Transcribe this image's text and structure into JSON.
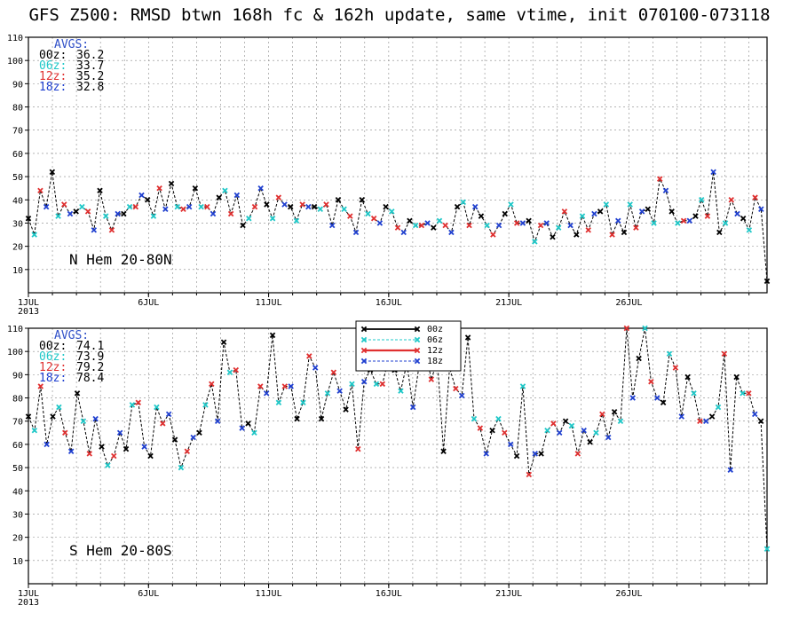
{
  "title": "GFS Z500: RMSD btwn 168h fc & 162h update, same vtime, init 070100-073118",
  "colors": {
    "00z": "#000000",
    "06z": "#1fc8c8",
    "12z": "#e03030",
    "18z": "#2040d0",
    "grid": "#888888"
  },
  "chart_data": [
    {
      "type": "line",
      "panel_label": "N Hem 20-80N",
      "ylim": [
        0,
        110
      ],
      "yticks": [
        10,
        20,
        30,
        40,
        50,
        60,
        70,
        80,
        90,
        100,
        110
      ],
      "xlim": [
        1,
        31.75
      ],
      "xticks": [
        {
          "x": 1,
          "label": "1JUL"
        },
        {
          "x": 6,
          "label": "6JUL"
        },
        {
          "x": 11,
          "label": "11JUL"
        },
        {
          "x": 16,
          "label": "16JUL"
        },
        {
          "x": 21,
          "label": "21JUL"
        },
        {
          "x": 26,
          "label": "26JUL"
        }
      ],
      "year_label": "2013",
      "avgs_title": "AVGS:",
      "avgs": [
        {
          "cycle": "00z",
          "label": "00z:",
          "value": "36.2"
        },
        {
          "cycle": "06z",
          "label": "06z:",
          "value": "33.7"
        },
        {
          "cycle": "12z",
          "label": "12z:",
          "value": "35.2"
        },
        {
          "cycle": "18z",
          "label": "18z:",
          "value": "32.8"
        }
      ],
      "values": [
        32,
        25,
        44,
        37,
        52,
        33,
        38,
        34,
        35,
        37,
        35,
        27,
        44,
        33,
        27,
        34,
        34,
        37,
        37,
        42,
        40,
        33,
        45,
        36,
        47,
        37,
        36,
        37,
        45,
        37,
        37,
        34,
        41,
        44,
        34,
        42,
        29,
        32,
        37,
        45,
        38,
        32,
        41,
        38,
        37,
        31,
        38,
        37,
        37,
        36,
        38,
        29,
        40,
        36,
        33,
        26,
        40,
        34,
        32,
        30,
        37,
        35,
        28,
        26,
        31,
        29,
        29,
        30,
        28,
        31,
        29,
        26,
        37,
        39,
        29,
        37,
        33,
        29,
        25,
        29,
        34,
        38,
        30,
        30,
        31,
        22,
        29,
        30,
        24,
        28,
        35,
        29,
        25,
        33,
        27,
        34,
        35,
        38,
        25,
        31,
        26,
        38,
        28,
        35,
        36,
        30,
        49,
        44,
        35,
        30,
        31,
        31,
        33,
        40,
        33,
        52,
        26,
        30,
        40,
        34,
        32,
        27,
        41,
        36,
        5
      ]
    },
    {
      "type": "line",
      "panel_label": "S Hem 20-80S",
      "ylim": [
        0,
        110
      ],
      "yticks": [
        10,
        20,
        30,
        40,
        50,
        60,
        70,
        80,
        90,
        100,
        110
      ],
      "xlim": [
        1,
        31.75
      ],
      "xticks": [
        {
          "x": 1,
          "label": "1JUL"
        },
        {
          "x": 6,
          "label": "6JUL"
        },
        {
          "x": 11,
          "label": "11JUL"
        },
        {
          "x": 16,
          "label": "16JUL"
        },
        {
          "x": 21,
          "label": "21JUL"
        },
        {
          "x": 26,
          "label": "26JUL"
        }
      ],
      "year_label": "2013",
      "avgs_title": "AVGS:",
      "avgs": [
        {
          "cycle": "00z",
          "label": "00z:",
          "value": "74.1"
        },
        {
          "cycle": "06z",
          "label": "06z:",
          "value": "73.9"
        },
        {
          "cycle": "12z",
          "label": "12z:",
          "value": "79.2"
        },
        {
          "cycle": "18z",
          "label": "18z:",
          "value": "78.4"
        }
      ],
      "legend": [
        "00z",
        "06z",
        "12z",
        "18z"
      ],
      "values": [
        72,
        66,
        85,
        60,
        72,
        76,
        65,
        57,
        82,
        70,
        56,
        71,
        59,
        51,
        55,
        65,
        58,
        77,
        78,
        59,
        55,
        76,
        69,
        73,
        62,
        50,
        57,
        63,
        65,
        77,
        86,
        70,
        104,
        91,
        92,
        67,
        69,
        65,
        85,
        82,
        107,
        78,
        85,
        85,
        71,
        78,
        98,
        93,
        71,
        82,
        91,
        83,
        75,
        86,
        58,
        87,
        92,
        86,
        86,
        97,
        92,
        83,
        95,
        76,
        94,
        101,
        88,
        96,
        57,
        93,
        84,
        81,
        106,
        71,
        67,
        56,
        66,
        71,
        65,
        60,
        55,
        85,
        47,
        56,
        56,
        66,
        69,
        65,
        70,
        68,
        56,
        66,
        61,
        65,
        73,
        63,
        74,
        70,
        110,
        80,
        97,
        110,
        87,
        80,
        78,
        99,
        93,
        72,
        89,
        82,
        70,
        70,
        72,
        76,
        99,
        49,
        89,
        82,
        82,
        73,
        70,
        15
      ]
    }
  ]
}
